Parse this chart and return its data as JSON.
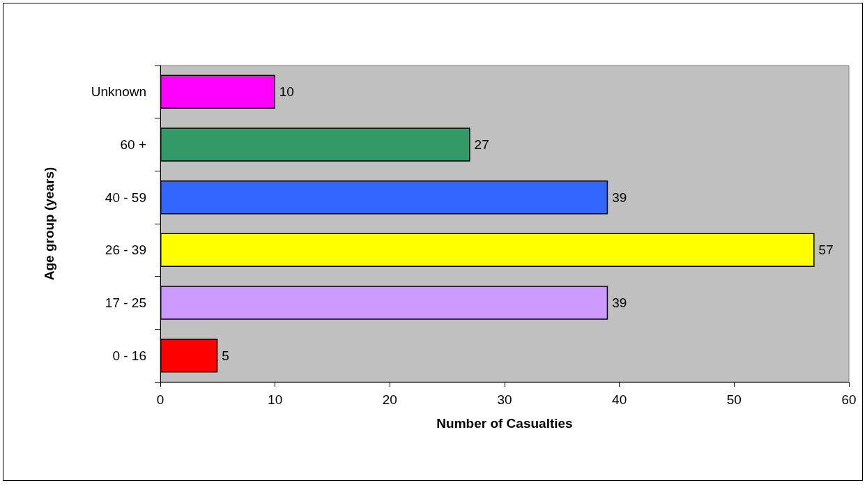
{
  "chart_data": {
    "type": "bar",
    "orientation": "horizontal",
    "xlabel": "Number of Casualties",
    "ylabel": "Age group (years)",
    "categories": [
      "Unknown",
      "60 +",
      "40 - 59",
      "26 - 39",
      "17 - 25",
      "0 - 16"
    ],
    "values": [
      10,
      27,
      39,
      57,
      39,
      5
    ],
    "colors": [
      "#ff00ff",
      "#339966",
      "#3366ff",
      "#ffff00",
      "#cc99ff",
      "#ff0000"
    ],
    "xlim": [
      0,
      60
    ],
    "xticks": [
      0,
      10,
      20,
      30,
      40,
      50,
      60
    ],
    "data_labels": true
  }
}
